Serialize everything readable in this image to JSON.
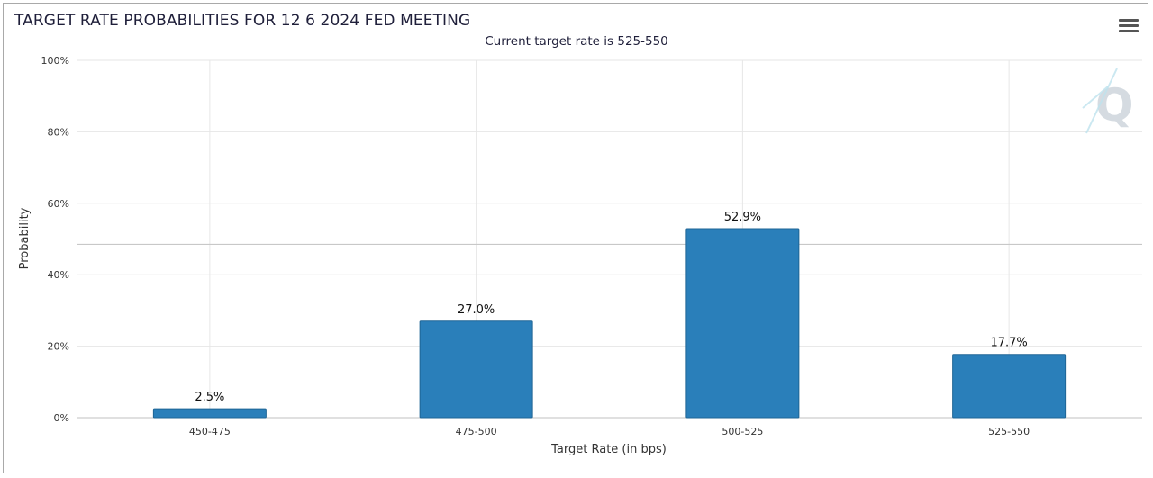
{
  "chart_data": {
    "type": "bar",
    "title": "TARGET RATE PROBABILITIES FOR 12 6 2024 FED MEETING",
    "subtitle": "Current target rate is 525-550",
    "xlabel": "Target Rate (in bps)",
    "ylabel": "Probability",
    "categories": [
      "450-475",
      "475-500",
      "500-525",
      "525-550"
    ],
    "values": [
      2.5,
      27.0,
      52.9,
      17.7
    ],
    "data_labels": [
      "2.5%",
      "27.0%",
      "52.9%",
      "17.7%"
    ],
    "ylim": [
      0,
      100
    ],
    "yticks": [
      0,
      20,
      40,
      60,
      80,
      100
    ],
    "ytick_labels": [
      "0%",
      "20%",
      "40%",
      "60%",
      "80%",
      "100%"
    ],
    "grid": true,
    "bar_color": "#2a7fba",
    "bar_border_color": "#1f6595",
    "reference_line_value": 48.5
  },
  "toolbar": {
    "menu_icon": "hamburger-icon"
  },
  "watermark": {
    "icon": "q-logo-icon"
  }
}
